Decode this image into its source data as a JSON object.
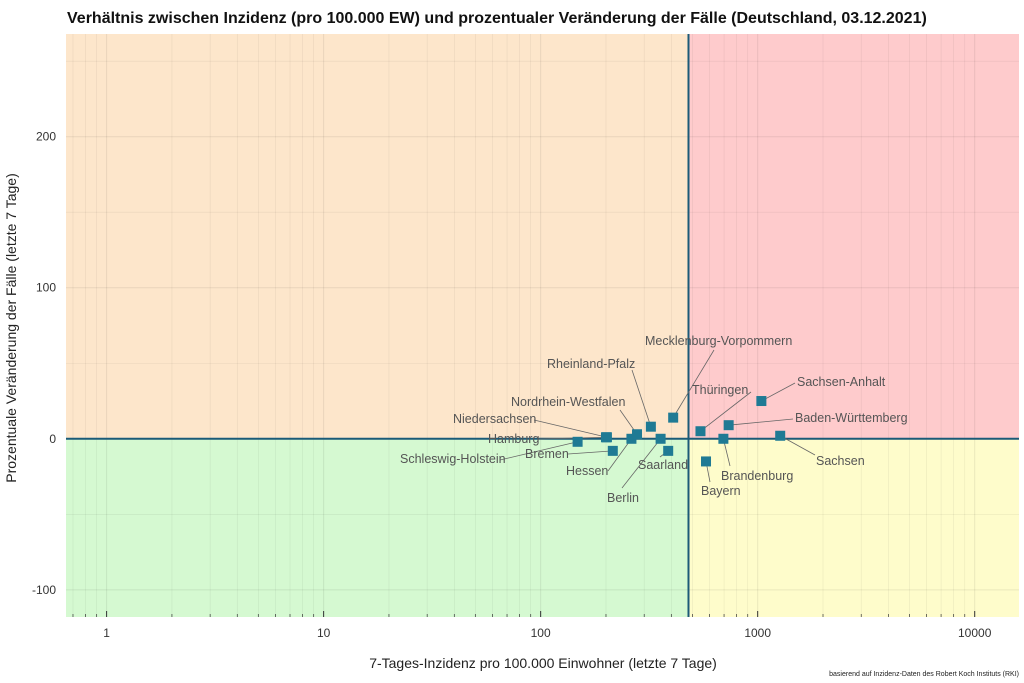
{
  "chart_data": {
    "type": "scatter",
    "title": "Verhältnis zwischen Inzidenz (pro 100.000 EW) und prozentualer Veränderung der Fälle (Deutschland, 03.12.2021)",
    "xlabel": "7-Tages-Inzidenz pro 100.000 Einwohner (letzte 7 Tage)",
    "ylabel": "Prozentuale Veränderung der Fälle (letzte 7 Tage)",
    "source_note": "basierend auf Inzidenz-Daten des Robert Koch Instituts (RKI)",
    "x_scale": "log",
    "xlim": [
      0.65,
      16000
    ],
    "ylim": [
      -118,
      268
    ],
    "x_ticks": [
      1,
      10,
      100,
      1000,
      10000
    ],
    "x_tick_labels": [
      "1",
      "10",
      "100",
      "1000",
      "10000"
    ],
    "y_ticks": [
      -100,
      0,
      100,
      200
    ],
    "y_tick_labels": [
      "-100",
      "0",
      "100",
      "200"
    ],
    "threshold_x": 480,
    "threshold_y": 0,
    "grid": true,
    "colors": {
      "top_left": "#fde6cb",
      "top_right": "#fecbcc",
      "bottom_left": "#d5f9d1",
      "bottom_right": "#fefccb",
      "point": "#1f7a94",
      "threshold_line": "#1b5a78",
      "label_text": "#555555",
      "leader_line": "#666666"
    },
    "points": [
      {
        "name": "Schleswig-Holstein",
        "x": 148,
        "y": -2
      },
      {
        "name": "Hamburg",
        "x": 200,
        "y": 1
      },
      {
        "name": "Niedersachsen",
        "x": 202,
        "y": 1
      },
      {
        "name": "Bremen",
        "x": 215,
        "y": -8
      },
      {
        "name": "Hessen",
        "x": 262,
        "y": 0
      },
      {
        "name": "Nordrhein-Westfalen",
        "x": 278,
        "y": 3
      },
      {
        "name": "Rheinland-Pfalz",
        "x": 322,
        "y": 8
      },
      {
        "name": "Berlin",
        "x": 357,
        "y": 0
      },
      {
        "name": "Saarland",
        "x": 387,
        "y": -8
      },
      {
        "name": "Mecklenburg-Vorpommern",
        "x": 408,
        "y": 14
      },
      {
        "name": "Bayern",
        "x": 578,
        "y": -15
      },
      {
        "name": "Thüringen",
        "x": 545,
        "y": 5
      },
      {
        "name": "Brandenburg",
        "x": 695,
        "y": 0
      },
      {
        "name": "Baden-Württemberg",
        "x": 735,
        "y": 9
      },
      {
        "name": "Sachsen-Anhalt",
        "x": 1040,
        "y": 25
      },
      {
        "name": "Sachsen",
        "x": 1270,
        "y": 2
      }
    ]
  }
}
